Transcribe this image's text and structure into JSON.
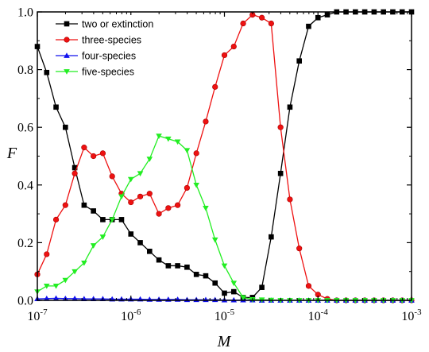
{
  "chart_data": {
    "type": "line",
    "title": "",
    "xlabel": "M",
    "ylabel": "F",
    "x_scale": "log",
    "xlim": [
      1e-07,
      0.001
    ],
    "ylim": [
      0,
      1
    ],
    "x_ticks": [
      {
        "value": 1e-07,
        "base": "10",
        "exp": "-7"
      },
      {
        "value": 1e-06,
        "base": "10",
        "exp": "-6"
      },
      {
        "value": 1e-05,
        "base": "10",
        "exp": "-5"
      },
      {
        "value": 0.0001,
        "base": "10",
        "exp": "-4"
      },
      {
        "value": 0.001,
        "base": "10",
        "exp": "-3"
      }
    ],
    "y_ticks": [
      "0.0",
      "0.2",
      "0.4",
      "0.6",
      "0.8",
      "1.0"
    ],
    "grid": false,
    "legend_position": "top-left",
    "x": [
      1e-07,
      1.259e-07,
      1.585e-07,
      1.995e-07,
      2.512e-07,
      3.162e-07,
      3.981e-07,
      5.012e-07,
      6.31e-07,
      7.943e-07,
      1e-06,
      1.259e-06,
      1.585e-06,
      1.995e-06,
      2.512e-06,
      3.162e-06,
      3.981e-06,
      5.012e-06,
      6.31e-06,
      7.943e-06,
      1e-05,
      1.259e-05,
      1.585e-05,
      1.995e-05,
      2.512e-05,
      3.162e-05,
      3.981e-05,
      5.012e-05,
      6.31e-05,
      7.943e-05,
      0.0001,
      0.0001259,
      0.0001585,
      0.0001995,
      0.0002512,
      0.0003162,
      0.0003981,
      0.0005012,
      0.000631,
      0.0007943,
      0.001
    ],
    "series": [
      {
        "name": "two or extinction",
        "color": "#000000",
        "marker": "square",
        "values": [
          0.88,
          0.79,
          0.67,
          0.6,
          0.46,
          0.33,
          0.31,
          0.28,
          0.28,
          0.28,
          0.23,
          0.2,
          0.17,
          0.14,
          0.12,
          0.12,
          0.115,
          0.09,
          0.085,
          0.06,
          0.025,
          0.03,
          0.01,
          0.01,
          0.045,
          0.22,
          0.44,
          0.67,
          0.83,
          0.95,
          0.98,
          0.99,
          1.0,
          1.0,
          1.0,
          1.0,
          1.0,
          1.0,
          1.0,
          1.0,
          1.0
        ]
      },
      {
        "name": "three-species",
        "color": "#ee1111",
        "marker": "circle",
        "values": [
          0.09,
          0.16,
          0.28,
          0.33,
          0.44,
          0.53,
          0.5,
          0.51,
          0.43,
          0.37,
          0.34,
          0.36,
          0.37,
          0.3,
          0.32,
          0.33,
          0.39,
          0.51,
          0.62,
          0.74,
          0.85,
          0.88,
          0.96,
          0.99,
          0.98,
          0.96,
          0.6,
          0.35,
          0.18,
          0.05,
          0.02,
          0.005,
          0.0,
          0.0,
          0.0,
          0.0,
          0.0,
          0.0,
          0.0,
          0.0,
          0.0
        ]
      },
      {
        "name": "four-species",
        "color": "#1111ee",
        "marker": "triangle-up",
        "values": [
          0.005,
          0.006,
          0.007,
          0.006,
          0.006,
          0.005,
          0.005,
          0.005,
          0.004,
          0.004,
          0.004,
          0.004,
          0.003,
          0.003,
          0.003,
          0.003,
          0.002,
          0.002,
          0.002,
          0.002,
          0.001,
          0.001,
          0.001,
          0.001,
          0.0,
          0.0,
          0.0,
          0.0,
          0.0,
          0.0,
          0.0,
          0.0,
          0.0,
          0.0,
          0.0,
          0.0,
          0.0,
          0.0,
          0.0,
          0.0,
          0.0
        ]
      },
      {
        "name": "five-species",
        "color": "#22ee22",
        "marker": "triangle-down",
        "values": [
          0.03,
          0.05,
          0.05,
          0.07,
          0.1,
          0.13,
          0.19,
          0.22,
          0.28,
          0.36,
          0.42,
          0.44,
          0.49,
          0.57,
          0.56,
          0.55,
          0.52,
          0.4,
          0.32,
          0.21,
          0.12,
          0.06,
          0.01,
          0.003,
          0.002,
          0.001,
          0.0,
          0.0,
          0.0,
          0.0,
          0.0,
          0.0,
          0.0,
          0.0,
          0.0,
          0.0,
          0.0,
          0.0,
          0.0,
          0.0,
          0.0
        ]
      }
    ]
  }
}
